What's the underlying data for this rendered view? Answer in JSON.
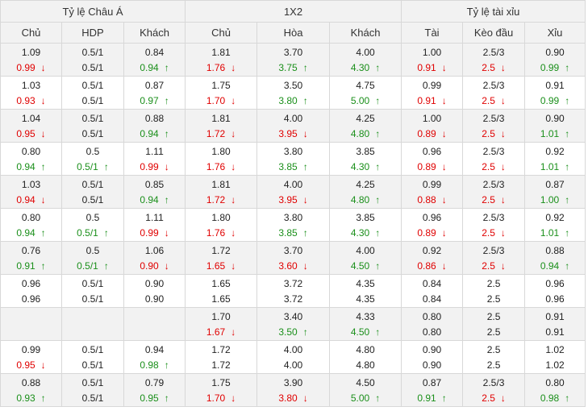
{
  "groups": [
    {
      "label": "Tỷ lệ Châu Á",
      "span": 3
    },
    {
      "label": "1X2",
      "span": 3
    },
    {
      "label": "Tỷ lệ tài xỉu",
      "span": 3
    }
  ],
  "columns": [
    "Chủ",
    "HDP",
    "Khách",
    "Chủ",
    "Hòa",
    "Khách",
    "Tài",
    "Kèo đầu",
    "Xỉu"
  ],
  "rows": [
    {
      "cells": [
        [
          "1.09",
          "0.99",
          "down"
        ],
        [
          "0.5/1",
          "0.5/1",
          ""
        ],
        [
          "0.84",
          "0.94",
          "up"
        ],
        [
          "1.81",
          "1.76",
          "down"
        ],
        [
          "3.70",
          "3.75",
          "up"
        ],
        [
          "4.00",
          "4.30",
          "up"
        ],
        [
          "1.00",
          "0.91",
          "down"
        ],
        [
          "2.5/3",
          "2.5",
          "down"
        ],
        [
          "0.90",
          "0.99",
          "up"
        ]
      ]
    },
    {
      "cells": [
        [
          "1.03",
          "0.93",
          "down"
        ],
        [
          "0.5/1",
          "0.5/1",
          ""
        ],
        [
          "0.87",
          "0.97",
          "up"
        ],
        [
          "1.75",
          "1.70",
          "down"
        ],
        [
          "3.50",
          "3.80",
          "up"
        ],
        [
          "4.75",
          "5.00",
          "up"
        ],
        [
          "0.99",
          "0.91",
          "down"
        ],
        [
          "2.5/3",
          "2.5",
          "down"
        ],
        [
          "0.91",
          "0.99",
          "up"
        ]
      ]
    },
    {
      "cells": [
        [
          "1.04",
          "0.95",
          "down"
        ],
        [
          "0.5/1",
          "0.5/1",
          ""
        ],
        [
          "0.88",
          "0.94",
          "up"
        ],
        [
          "1.81",
          "1.72",
          "down"
        ],
        [
          "4.00",
          "3.95",
          "down"
        ],
        [
          "4.25",
          "4.80",
          "up"
        ],
        [
          "1.00",
          "0.89",
          "down"
        ],
        [
          "2.5/3",
          "2.5",
          "down"
        ],
        [
          "0.90",
          "1.01",
          "up"
        ]
      ]
    },
    {
      "cells": [
        [
          "0.80",
          "0.94",
          "up"
        ],
        [
          "0.5",
          "0.5/1",
          "up"
        ],
        [
          "1.11",
          "0.99",
          "down"
        ],
        [
          "1.80",
          "1.76",
          "down"
        ],
        [
          "3.80",
          "3.85",
          "up"
        ],
        [
          "3.85",
          "4.30",
          "up"
        ],
        [
          "0.96",
          "0.89",
          "down"
        ],
        [
          "2.5/3",
          "2.5",
          "down"
        ],
        [
          "0.92",
          "1.01",
          "up"
        ]
      ]
    },
    {
      "cells": [
        [
          "1.03",
          "0.94",
          "down"
        ],
        [
          "0.5/1",
          "0.5/1",
          ""
        ],
        [
          "0.85",
          "0.94",
          "up"
        ],
        [
          "1.81",
          "1.72",
          "down"
        ],
        [
          "4.00",
          "3.95",
          "down"
        ],
        [
          "4.25",
          "4.80",
          "up"
        ],
        [
          "0.99",
          "0.88",
          "down"
        ],
        [
          "2.5/3",
          "2.5",
          "down"
        ],
        [
          "0.87",
          "1.00",
          "up"
        ]
      ]
    },
    {
      "cells": [
        [
          "0.80",
          "0.94",
          "up"
        ],
        [
          "0.5",
          "0.5/1",
          "up"
        ],
        [
          "1.11",
          "0.99",
          "down"
        ],
        [
          "1.80",
          "1.76",
          "down"
        ],
        [
          "3.80",
          "3.85",
          "up"
        ],
        [
          "3.85",
          "4.30",
          "up"
        ],
        [
          "0.96",
          "0.89",
          "down"
        ],
        [
          "2.5/3",
          "2.5",
          "down"
        ],
        [
          "0.92",
          "1.01",
          "up"
        ]
      ]
    },
    {
      "cells": [
        [
          "0.76",
          "0.91",
          "up"
        ],
        [
          "0.5",
          "0.5/1",
          "up"
        ],
        [
          "1.06",
          "0.90",
          "down"
        ],
        [
          "1.72",
          "1.65",
          "down"
        ],
        [
          "3.70",
          "3.60",
          "down"
        ],
        [
          "4.00",
          "4.50",
          "up"
        ],
        [
          "0.92",
          "0.86",
          "down"
        ],
        [
          "2.5/3",
          "2.5",
          "down"
        ],
        [
          "0.88",
          "0.94",
          "up"
        ]
      ]
    },
    {
      "cells": [
        [
          "0.96",
          "0.96",
          ""
        ],
        [
          "0.5/1",
          "0.5/1",
          ""
        ],
        [
          "0.90",
          "0.90",
          ""
        ],
        [
          "1.65",
          "1.65",
          ""
        ],
        [
          "3.72",
          "3.72",
          ""
        ],
        [
          "4.35",
          "4.35",
          ""
        ],
        [
          "0.84",
          "0.84",
          ""
        ],
        [
          "2.5",
          "2.5",
          ""
        ],
        [
          "0.96",
          "0.96",
          ""
        ]
      ]
    },
    {
      "cells": [
        [
          "",
          "",
          ""
        ],
        [
          "",
          "",
          ""
        ],
        [
          "",
          "",
          ""
        ],
        [
          "1.70",
          "1.67",
          "down"
        ],
        [
          "3.40",
          "3.50",
          "up"
        ],
        [
          "4.33",
          "4.50",
          "up"
        ],
        [
          "0.80",
          "0.80",
          ""
        ],
        [
          "2.5",
          "2.5",
          ""
        ],
        [
          "0.91",
          "0.91",
          ""
        ]
      ]
    },
    {
      "cells": [
        [
          "0.99",
          "0.95",
          "down"
        ],
        [
          "0.5/1",
          "0.5/1",
          ""
        ],
        [
          "0.94",
          "0.98",
          "up"
        ],
        [
          "1.72",
          "1.72",
          ""
        ],
        [
          "4.00",
          "4.00",
          ""
        ],
        [
          "4.80",
          "4.80",
          ""
        ],
        [
          "0.90",
          "0.90",
          ""
        ],
        [
          "2.5",
          "2.5",
          ""
        ],
        [
          "1.02",
          "1.02",
          ""
        ]
      ]
    },
    {
      "cells": [
        [
          "0.88",
          "0.93",
          "up"
        ],
        [
          "0.5/1",
          "0.5/1",
          ""
        ],
        [
          "0.79",
          "0.95",
          "up"
        ],
        [
          "1.75",
          "1.70",
          "down"
        ],
        [
          "3.90",
          "3.80",
          "down"
        ],
        [
          "4.50",
          "5.00",
          "up"
        ],
        [
          "0.87",
          "0.91",
          "up"
        ],
        [
          "2.5/3",
          "2.5",
          "down"
        ],
        [
          "0.80",
          "0.98",
          "up"
        ]
      ]
    }
  ],
  "icons": {
    "down": "arrow-down-icon",
    "up": "arrow-up-icon"
  },
  "colors": {
    "down": "#e00000",
    "up": "#1a8f1a",
    "header_bg": "#f2f2f2",
    "alt_row_bg": "#f2f2f2"
  }
}
